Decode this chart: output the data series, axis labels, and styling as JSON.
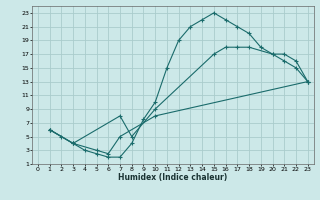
{
  "xlabel": "Humidex (Indice chaleur)",
  "bg_color": "#cce8e8",
  "grid_color": "#aacccc",
  "line_color": "#1a6b6b",
  "xlim": [
    -0.5,
    23.5
  ],
  "ylim": [
    1,
    24
  ],
  "xticks": [
    0,
    1,
    2,
    3,
    4,
    5,
    6,
    7,
    8,
    9,
    10,
    11,
    12,
    13,
    14,
    15,
    16,
    17,
    18,
    19,
    20,
    21,
    22,
    23
  ],
  "yticks": [
    1,
    3,
    5,
    7,
    9,
    11,
    13,
    15,
    17,
    19,
    21,
    23
  ],
  "line1_x": [
    1,
    2,
    3,
    4,
    5,
    6,
    7,
    8,
    9,
    10,
    11,
    12,
    13,
    14,
    15,
    16,
    17,
    18,
    19,
    20,
    21,
    22,
    23
  ],
  "line1_y": [
    6,
    5,
    4,
    3,
    2.5,
    2,
    2,
    4,
    7.5,
    10,
    15,
    19,
    21,
    22,
    23,
    22,
    21,
    20,
    18,
    17,
    16,
    15,
    13
  ],
  "line2_x": [
    1,
    3,
    7,
    8,
    10,
    15,
    16,
    17,
    18,
    20,
    21,
    22,
    23
  ],
  "line2_y": [
    6,
    4,
    8,
    5,
    9,
    17,
    18,
    18,
    18,
    17,
    17,
    16,
    13
  ],
  "line3_x": [
    1,
    3,
    5,
    6,
    7,
    10,
    23
  ],
  "line3_y": [
    6,
    4,
    3,
    2.5,
    5,
    8,
    13
  ]
}
